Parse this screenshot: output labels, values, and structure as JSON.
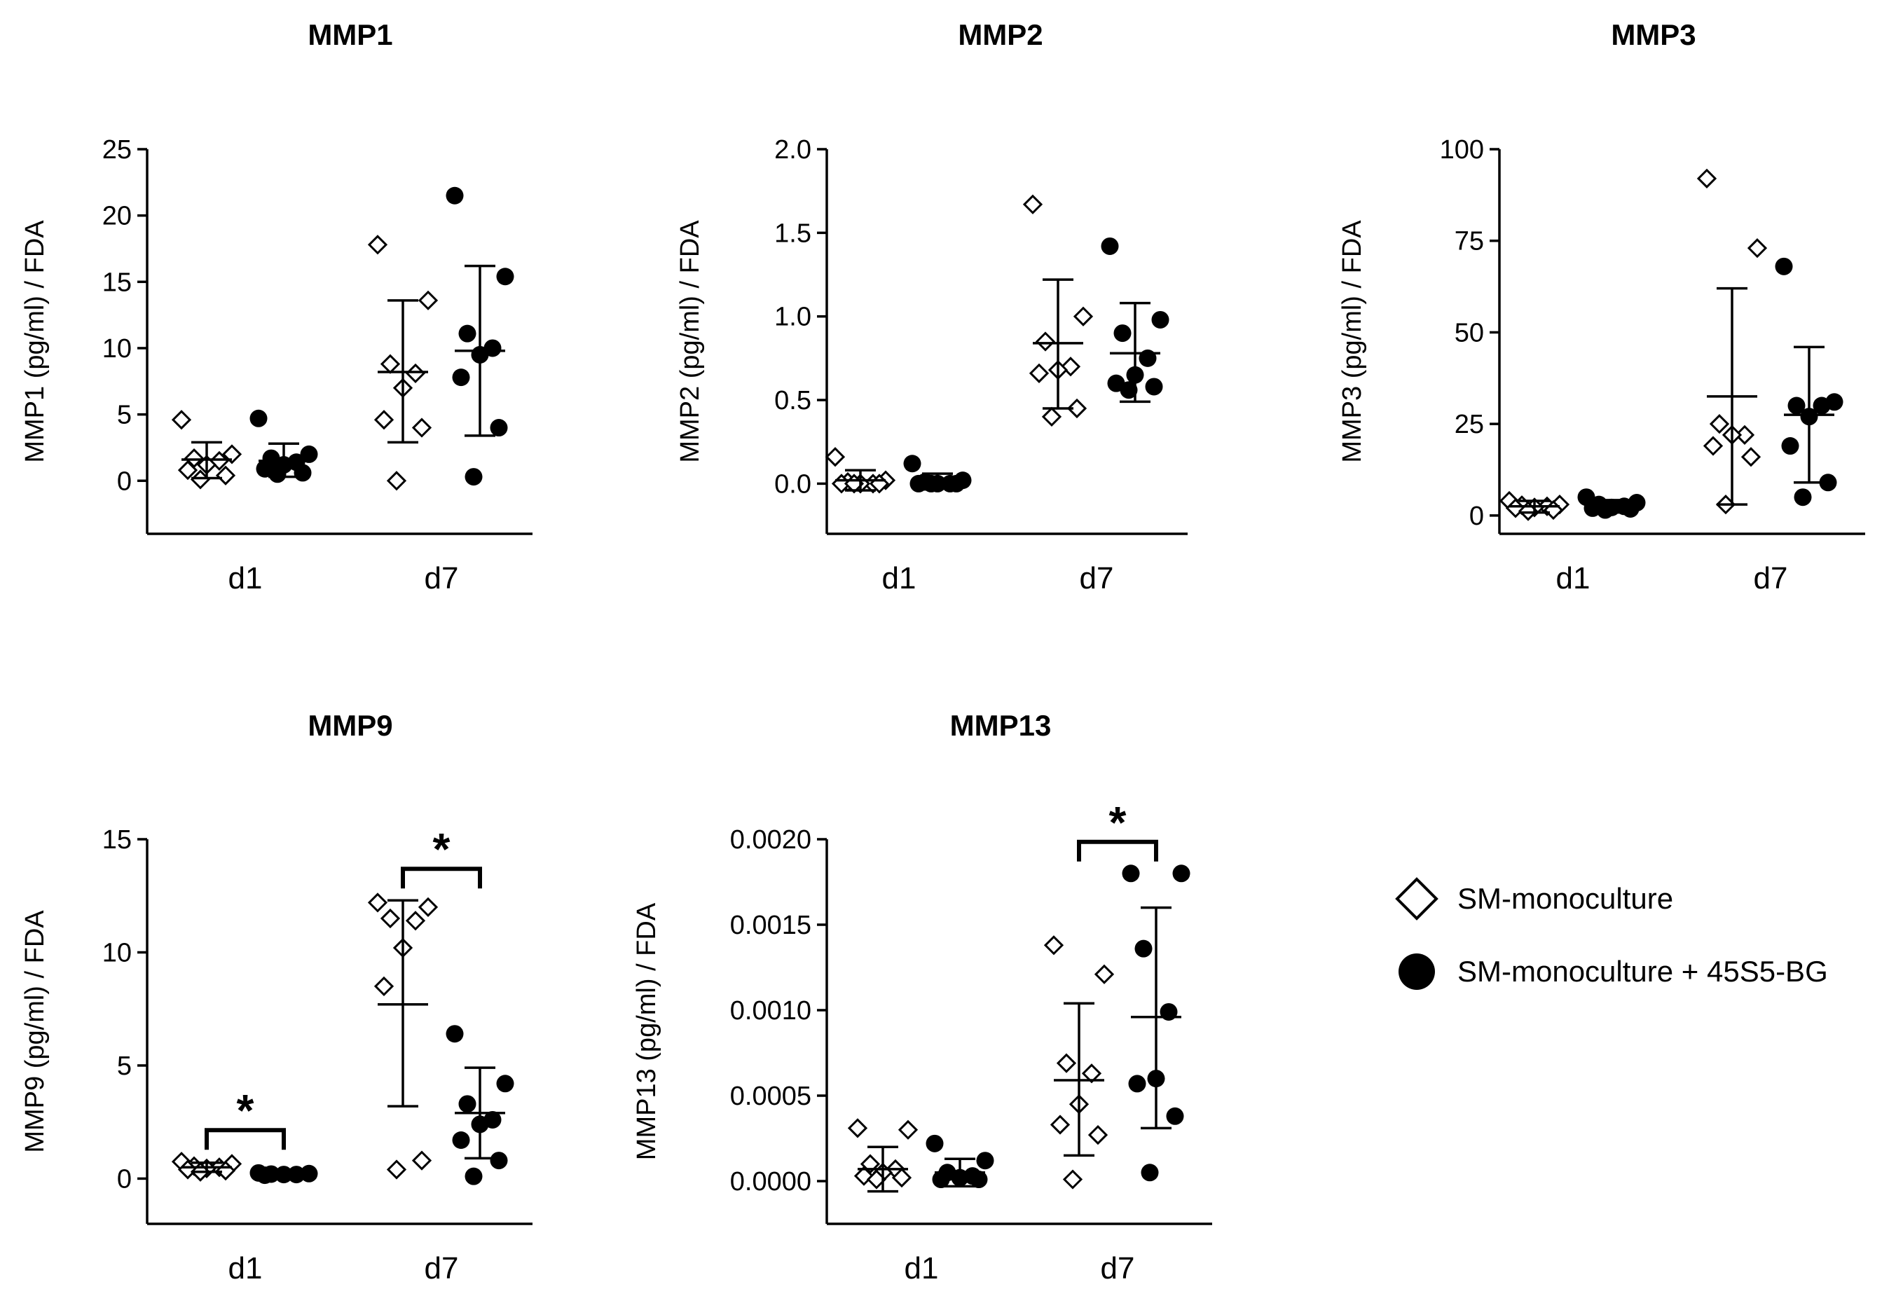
{
  "legend": {
    "items": [
      {
        "label": "SM-monoculture",
        "marker": "open-diamond"
      },
      {
        "label": "SM-monoculture + 45S5-BG",
        "marker": "filled-circle"
      }
    ]
  },
  "chart_data": [
    {
      "type": "scatter",
      "title": "MMP1",
      "ylabel": "MMP1 (pg/ml) / FDA",
      "ylim": [
        -4,
        25
      ],
      "yticks": [
        0,
        5,
        10,
        15,
        20,
        25
      ],
      "ytick_labels": [
        "0",
        "5",
        "10",
        "15",
        "20",
        "25"
      ],
      "categories": [
        "d1",
        "d7"
      ],
      "series": [
        {
          "name": "SM-monoculture",
          "groups": [
            {
              "category": "d1",
              "mean": 1.6,
              "sd_low": 0.2,
              "sd_high": 2.9,
              "points": [
                4.6,
                2.0,
                1.7,
                1.5,
                1.2,
                0.8,
                0.4,
                0.1
              ]
            },
            {
              "category": "d7",
              "mean": 8.2,
              "sd_low": 2.9,
              "sd_high": 13.6,
              "points": [
                17.8,
                13.6,
                8.8,
                8.1,
                7.0,
                4.6,
                4.0,
                0.0
              ]
            }
          ]
        },
        {
          "name": "SM-monoculture + 45S5-BG",
          "groups": [
            {
              "category": "d1",
              "mean": 1.5,
              "sd_low": 0.3,
              "sd_high": 2.8,
              "points": [
                4.7,
                2.0,
                1.7,
                1.4,
                1.2,
                0.9,
                0.6,
                0.5
              ]
            },
            {
              "category": "d7",
              "mean": 9.8,
              "sd_low": 3.4,
              "sd_high": 16.2,
              "points": [
                21.5,
                15.4,
                11.1,
                10.0,
                9.5,
                7.8,
                4.0,
                0.3
              ]
            }
          ]
        }
      ],
      "significance": []
    },
    {
      "type": "scatter",
      "title": "MMP2",
      "ylabel": "MMP2 (pg/ml) / FDA",
      "ylim": [
        -0.3,
        2.0
      ],
      "yticks": [
        0,
        0.5,
        1.0,
        1.5,
        2.0
      ],
      "ytick_labels": [
        "0.0",
        "0.5",
        "1.0",
        "1.5",
        "2.0"
      ],
      "categories": [
        "d1",
        "d7"
      ],
      "series": [
        {
          "name": "SM-monoculture",
          "groups": [
            {
              "category": "d1",
              "mean": 0.02,
              "sd_low": -0.04,
              "sd_high": 0.08,
              "points": [
                0.16,
                0.02,
                0.01,
                0.0,
                0.0,
                0.0,
                0.0,
                0.0
              ]
            },
            {
              "category": "d7",
              "mean": 0.84,
              "sd_low": 0.45,
              "sd_high": 1.22,
              "points": [
                1.67,
                1.0,
                0.85,
                0.7,
                0.68,
                0.66,
                0.45,
                0.4
              ]
            }
          ]
        },
        {
          "name": "SM-monoculture + 45S5-BG",
          "groups": [
            {
              "category": "d1",
              "mean": 0.01,
              "sd_low": -0.03,
              "sd_high": 0.06,
              "points": [
                0.12,
                0.02,
                0.01,
                0.0,
                0.0,
                0.0,
                0.0,
                0.0
              ]
            },
            {
              "category": "d7",
              "mean": 0.78,
              "sd_low": 0.49,
              "sd_high": 1.08,
              "points": [
                1.42,
                0.98,
                0.9,
                0.75,
                0.65,
                0.6,
                0.58,
                0.56
              ]
            }
          ]
        }
      ],
      "significance": []
    },
    {
      "type": "scatter",
      "title": "MMP3",
      "ylabel": "MMP3 (pg/ml) / FDA",
      "ylim": [
        -5,
        100
      ],
      "yticks": [
        0,
        25,
        50,
        75,
        100
      ],
      "ytick_labels": [
        "0",
        "25",
        "50",
        "75",
        "100"
      ],
      "categories": [
        "d1",
        "d7"
      ],
      "series": [
        {
          "name": "SM-monoculture",
          "groups": [
            {
              "category": "d1",
              "mean": 2.5,
              "sd_low": 0.8,
              "sd_high": 4.0,
              "points": [
                4.0,
                3.0,
                2.8,
                2.5,
                2.2,
                2.0,
                1.5,
                1.2
              ]
            },
            {
              "category": "d7",
              "mean": 32.5,
              "sd_low": 3.0,
              "sd_high": 62.0,
              "points": [
                92.0,
                73.0,
                25.0,
                22.0,
                22.0,
                19.0,
                16.0,
                3.0
              ]
            }
          ]
        },
        {
          "name": "SM-monoculture + 45S5-BG",
          "groups": [
            {
              "category": "d1",
              "mean": 2.6,
              "sd_low": 0.8,
              "sd_high": 4.2,
              "points": [
                5.0,
                3.5,
                3.0,
                2.5,
                2.2,
                2.0,
                1.8,
                1.5
              ]
            },
            {
              "category": "d7",
              "mean": 27.5,
              "sd_low": 9.0,
              "sd_high": 46.0,
              "points": [
                68.0,
                31.0,
                30.0,
                30.0,
                27.0,
                19.0,
                9.0,
                5.0
              ]
            }
          ]
        }
      ],
      "significance": []
    },
    {
      "type": "scatter",
      "title": "MMP9",
      "ylabel": "MMP9 (pg/ml) / FDA",
      "ylim": [
        -2,
        15
      ],
      "yticks": [
        0,
        5,
        10,
        15
      ],
      "ytick_labels": [
        "0",
        "5",
        "10",
        "15"
      ],
      "categories": [
        "d1",
        "d7"
      ],
      "series": [
        {
          "name": "SM-monoculture",
          "groups": [
            {
              "category": "d1",
              "mean": 0.5,
              "sd_low": 0.3,
              "sd_high": 0.7,
              "points": [
                0.75,
                0.65,
                0.55,
                0.5,
                0.45,
                0.4,
                0.35,
                0.3
              ]
            },
            {
              "category": "d7",
              "mean": 7.7,
              "sd_low": 3.2,
              "sd_high": 12.3,
              "points": [
                12.2,
                12.0,
                11.5,
                11.4,
                10.2,
                8.5,
                0.8,
                0.4
              ]
            }
          ]
        },
        {
          "name": "SM-monoculture + 45S5-BG",
          "groups": [
            {
              "category": "d1",
              "mean": 0.2,
              "sd_low": 0.15,
              "sd_high": 0.28,
              "points": [
                0.25,
                0.22,
                0.2,
                0.18,
                0.18,
                0.15
              ]
            },
            {
              "category": "d7",
              "mean": 2.9,
              "sd_low": 0.9,
              "sd_high": 4.9,
              "points": [
                6.4,
                4.2,
                3.3,
                2.6,
                2.4,
                1.7,
                0.8,
                0.1
              ]
            }
          ]
        }
      ],
      "significance": [
        {
          "category": "d1",
          "label": "*"
        },
        {
          "category": "d7",
          "label": "*"
        }
      ]
    },
    {
      "type": "scatter",
      "title": "MMP13",
      "ylabel": "MMP13 (pg/ml) / FDA",
      "ylim": [
        -0.00025,
        0.002
      ],
      "yticks": [
        0,
        0.0005,
        0.001,
        0.0015,
        0.002
      ],
      "ytick_labels": [
        "0.0000",
        "0.0005",
        "0.0010",
        "0.0015",
        "0.0020"
      ],
      "categories": [
        "d1",
        "d7"
      ],
      "series": [
        {
          "name": "SM-monoculture",
          "groups": [
            {
              "category": "d1",
              "mean": 7e-05,
              "sd_low": -6e-05,
              "sd_high": 0.0002,
              "points": [
                0.00031,
                0.0003,
                0.0001,
                7e-05,
                5e-05,
                3e-05,
                2e-05,
                1e-05
              ]
            },
            {
              "category": "d7",
              "mean": 0.00059,
              "sd_low": 0.00015,
              "sd_high": 0.00104,
              "points": [
                0.00138,
                0.00121,
                0.00069,
                0.00063,
                0.00045,
                0.00033,
                0.00027,
                1e-05
              ]
            }
          ]
        },
        {
          "name": "SM-monoculture + 45S5-BG",
          "groups": [
            {
              "category": "d1",
              "mean": 5e-05,
              "sd_low": -3e-05,
              "sd_high": 0.00013,
              "points": [
                0.00022,
                0.00012,
                5e-05,
                3e-05,
                2e-05,
                1e-05,
                1e-05
              ]
            },
            {
              "category": "d7",
              "mean": 0.00096,
              "sd_low": 0.00031,
              "sd_high": 0.0016,
              "points": [
                0.0018,
                0.0018,
                0.00136,
                0.00099,
                0.0006,
                0.00057,
                0.00038,
                5e-05
              ]
            }
          ]
        }
      ],
      "significance": [
        {
          "category": "d7",
          "label": "*"
        }
      ]
    }
  ]
}
